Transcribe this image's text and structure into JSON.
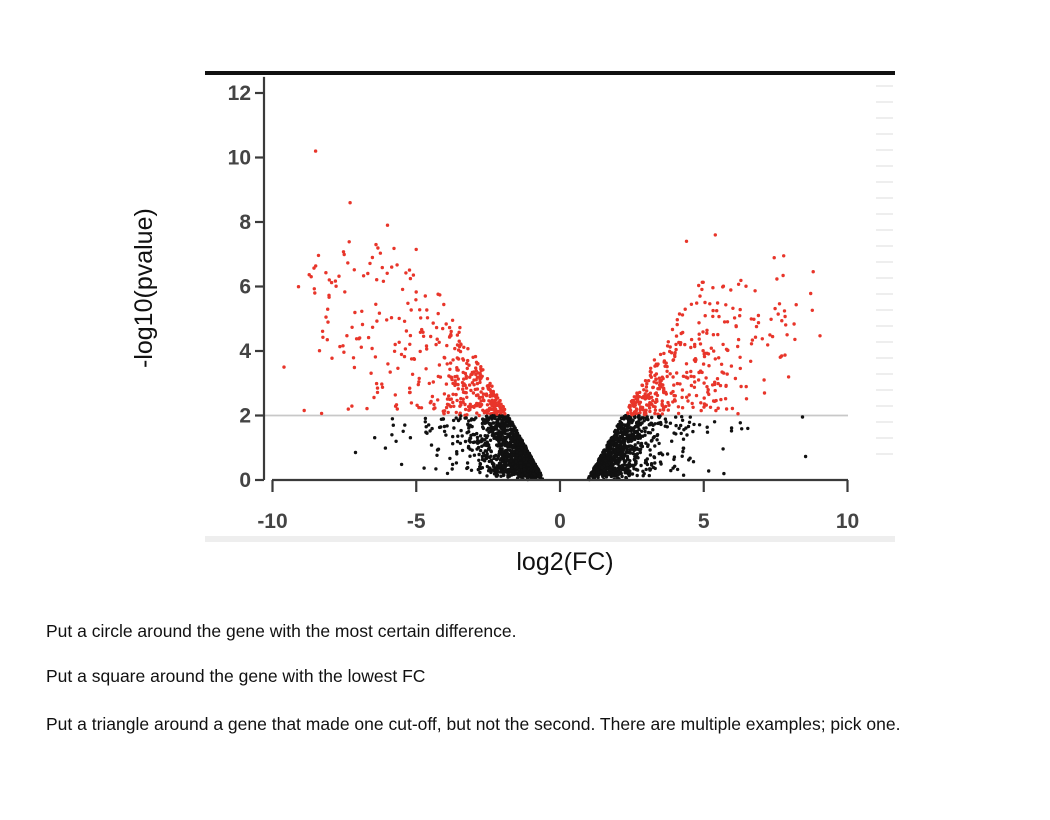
{
  "chart_data": {
    "type": "scatter",
    "title": "",
    "xlabel": "log2(FC)",
    "ylabel": "-log10(pvalue)",
    "xlim": [
      -10.5,
      10.5
    ],
    "ylim": [
      0,
      12.5
    ],
    "x_ticks": [
      "-10",
      "-5",
      "0",
      "5",
      "10"
    ],
    "y_ticks": [
      "0",
      "2",
      "4",
      "6",
      "8",
      "10",
      "12"
    ],
    "threshold_pvalue": 2,
    "colors": {
      "significant": "#e8352a",
      "not_significant": "#111111",
      "threshold_line": "#c8c8c8"
    },
    "notable_points": [
      {
        "x": -8.5,
        "y": 10.2,
        "color": "#e8352a"
      },
      {
        "x": -7.3,
        "y": 8.6,
        "color": "#e8352a"
      },
      {
        "x": -9.6,
        "y": 3.5,
        "color": "#e8352a"
      },
      {
        "x": -6.4,
        "y": 7.3,
        "color": "#e8352a"
      },
      {
        "x": -6.0,
        "y": 7.9,
        "color": "#e8352a"
      },
      {
        "x": 5.4,
        "y": 7.6,
        "color": "#e8352a"
      },
      {
        "x": 4.4,
        "y": 7.4,
        "color": "#e8352a"
      },
      {
        "x": 6.9,
        "y": 5.1,
        "color": "#e8352a"
      },
      {
        "x": 7.3,
        "y": 4.5,
        "color": "#e8352a"
      },
      {
        "x": 7.1,
        "y": 3.1,
        "color": "#e8352a"
      },
      {
        "x": -5.8,
        "y": 1.7,
        "color": "#111111"
      },
      {
        "x": -5.7,
        "y": 1.2,
        "color": "#111111"
      },
      {
        "x": 5.7,
        "y": 0.2,
        "color": "#111111"
      }
    ]
  },
  "instructions": [
    "Put a circle around the gene with the most certain difference.",
    "Put a square around the gene with the lowest FC",
    "Put a triangle around a gene that made one cut-off, but not the second. There are multiple examples; pick one."
  ]
}
